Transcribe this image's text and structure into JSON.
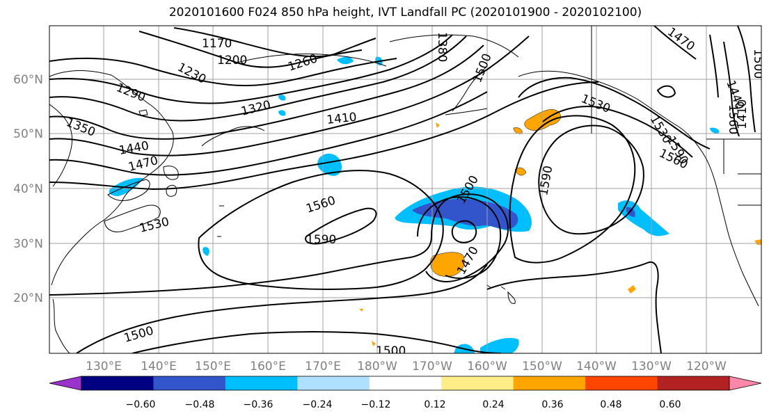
{
  "title": "2020101600 F024 850 hPa height, IVT Landfall PC (2020101900 - 2020102100)",
  "lat_labels": [
    "60°N",
    "50°N",
    "40°N",
    "30°N",
    "20°N"
  ],
  "lon_labels": [
    "130°E",
    "140°E",
    "150°E",
    "160°E",
    "170°E",
    "180°W",
    "170°W",
    "160°W",
    "150°W",
    "140°W",
    "130°W",
    "120°W"
  ],
  "colorbar": {
    "colors": [
      "#9933cc",
      "#000080",
      "#3355cc",
      "#00bfff",
      "#b0e0ff",
      "#ffffff",
      "#ffee88",
      "#ffa500",
      "#ff4500",
      "#b22222",
      "#ff88aa"
    ],
    "tick_labels": [
      "−0.60",
      "−0.48",
      "−0.36",
      "−0.24",
      "−0.12",
      "0.12",
      "0.24",
      "0.36",
      "0.48",
      "0.60"
    ]
  },
  "contour_labels": [
    "1170",
    "1200",
    "1230",
    "1260",
    "1290",
    "1320",
    "1350",
    "1410",
    "1440",
    "1470",
    "1500",
    "1530",
    "1560",
    "1590",
    "1380",
    "1410",
    "1440",
    "1470",
    "1500",
    "1530",
    "1560",
    "1590",
    "1500",
    "1500",
    "1500",
    "1470",
    "1530",
    "1560",
    "1590"
  ],
  "shading_colors": {
    "negative_light": "#00bfff",
    "negative_dark": "#3355cc",
    "positive": "#ffa500"
  }
}
